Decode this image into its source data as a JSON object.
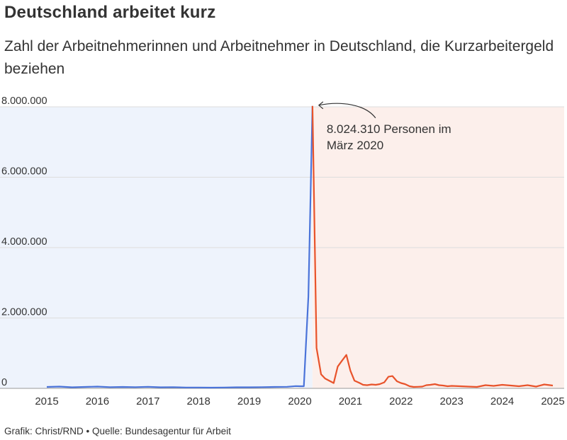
{
  "title": "Deutschland arbeitet kurz",
  "subtitle": "Zahl der Arbeitnehmerinnen und Arbeitnehmer in Deutschland, die Kurzarbeitergeld beziehen",
  "footer": "Grafik: Christ/RND • Quelle: Bundesagentur für Arbeit",
  "colors": {
    "before": "#4a73d9",
    "after": "#e8532b",
    "bg_before": "#eef3fc",
    "bg_after": "#fcefeb",
    "grid": "#dddddd",
    "text": "#333333"
  },
  "chart_data": {
    "type": "line",
    "x_unit": "year",
    "ylim": [
      0,
      8000000
    ],
    "y_ticks": [
      {
        "value": 0,
        "label": "0"
      },
      {
        "value": 2000000,
        "label": "2.000.000"
      },
      {
        "value": 4000000,
        "label": "4.000.000"
      },
      {
        "value": 6000000,
        "label": "6.000.000"
      },
      {
        "value": 8000000,
        "label": "8.000.000"
      }
    ],
    "x_ticks": [
      "2015",
      "2016",
      "2017",
      "2018",
      "2019",
      "2020",
      "2021",
      "2022",
      "2023",
      "2024",
      "2025"
    ],
    "grid": true,
    "annotation": {
      "text_line1": "8.024.310 Personen im",
      "text_line2": "März 2020",
      "x": 2020.25,
      "y": 8024310
    },
    "series": [
      {
        "segment": "before",
        "x": [
          2015.0,
          2015.25,
          2015.5,
          2015.75,
          2016.0,
          2016.25,
          2016.5,
          2016.75,
          2017.0,
          2017.25,
          2017.5,
          2017.75,
          2018.0,
          2018.25,
          2018.5,
          2018.75,
          2019.0,
          2019.25,
          2019.5,
          2019.75,
          2019.92,
          2020.0,
          2020.08,
          2020.17,
          2020.25
        ],
        "y": [
          40000,
          50000,
          30000,
          40000,
          50000,
          35000,
          40000,
          35000,
          45000,
          30000,
          35000,
          25000,
          25000,
          20000,
          25000,
          30000,
          30000,
          35000,
          40000,
          45000,
          65000,
          60000,
          60000,
          2600000,
          8024310
        ]
      },
      {
        "segment": "after",
        "x": [
          2020.25,
          2020.33,
          2020.42,
          2020.5,
          2020.58,
          2020.67,
          2020.75,
          2020.83,
          2020.92,
          2021.0,
          2021.08,
          2021.17,
          2021.25,
          2021.33,
          2021.42,
          2021.5,
          2021.58,
          2021.67,
          2021.75,
          2021.83,
          2021.92,
          2022.0,
          2022.08,
          2022.17,
          2022.25,
          2022.33,
          2022.42,
          2022.5,
          2022.58,
          2022.67,
          2022.75,
          2022.83,
          2022.92,
          2023.0,
          2023.17,
          2023.33,
          2023.5,
          2023.67,
          2023.83,
          2024.0,
          2024.17,
          2024.33,
          2024.5,
          2024.67,
          2024.83,
          2025.0
        ],
        "y": [
          8024310,
          1150000,
          400000,
          280000,
          220000,
          150000,
          620000,
          780000,
          950000,
          500000,
          220000,
          160000,
          100000,
          90000,
          110000,
          100000,
          120000,
          170000,
          330000,
          350000,
          200000,
          150000,
          120000,
          60000,
          40000,
          45000,
          50000,
          90000,
          100000,
          120000,
          90000,
          80000,
          60000,
          70000,
          60000,
          50000,
          40000,
          90000,
          70000,
          100000,
          80000,
          60000,
          90000,
          50000,
          110000,
          80000
        ]
      }
    ]
  }
}
